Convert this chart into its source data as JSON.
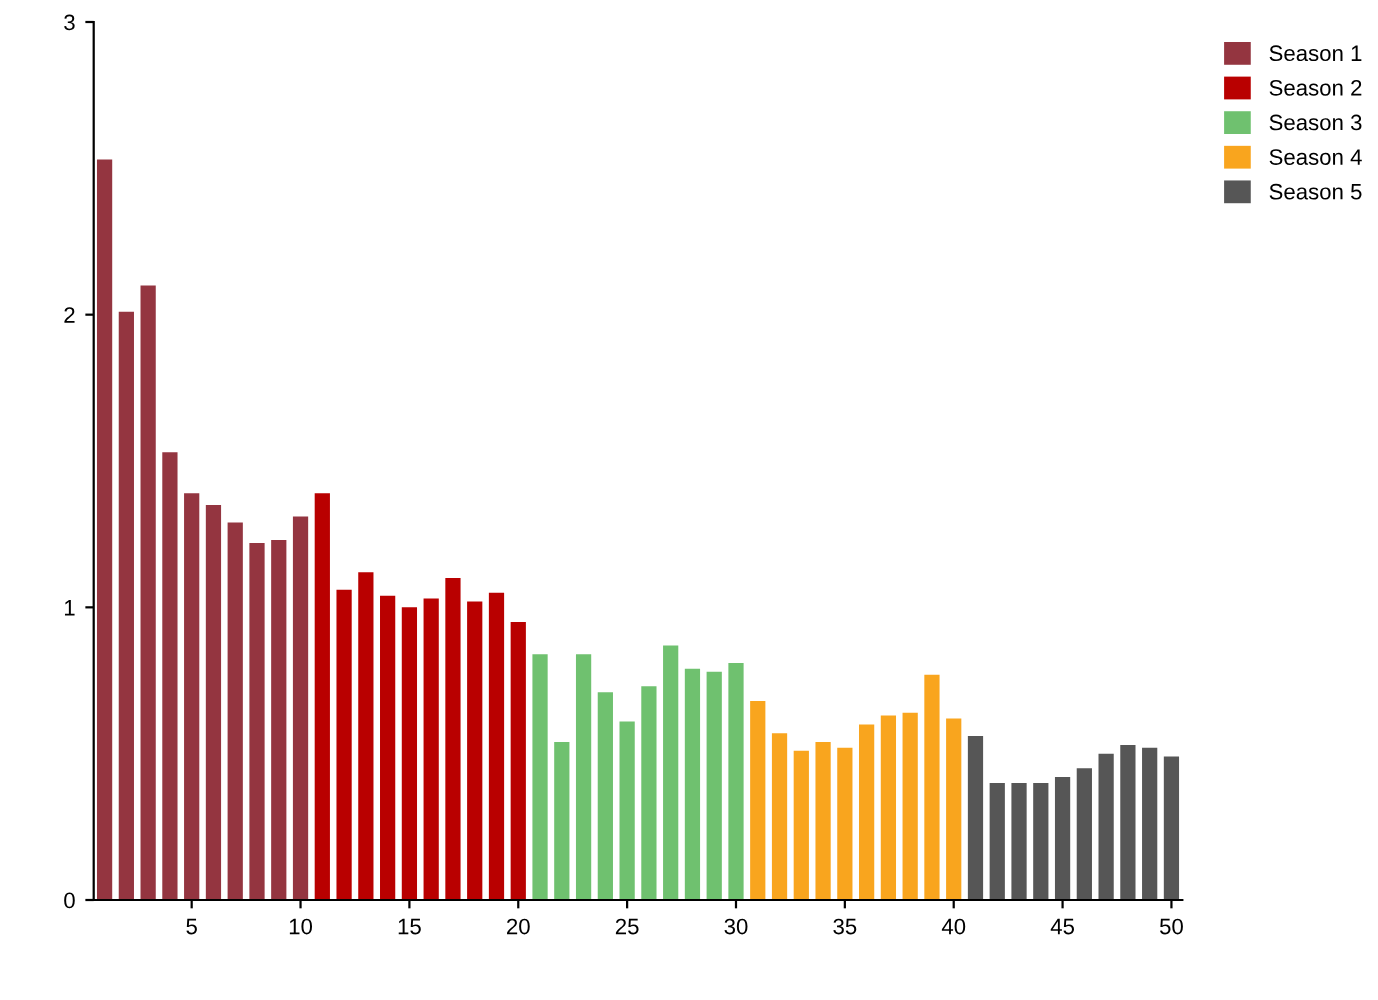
{
  "chart_data": {
    "type": "bar",
    "xlim": [
      0.5,
      50.5
    ],
    "xticks": [
      5,
      10,
      15,
      20,
      25,
      30,
      35,
      40,
      45,
      50
    ],
    "ylim": [
      0,
      3
    ],
    "yticks": [
      0,
      1,
      2,
      3
    ],
    "grid": false,
    "legend": "top right",
    "series": [
      {
        "name": "Season 1",
        "color": "#943540",
        "x": [
          1,
          2,
          3,
          4,
          5,
          6,
          7,
          8,
          9,
          10
        ],
        "values": [
          2.53,
          2.01,
          2.1,
          1.53,
          1.39,
          1.35,
          1.29,
          1.22,
          1.23,
          1.31
        ]
      },
      {
        "name": "Season 2",
        "color": "#b90000",
        "x": [
          11,
          12,
          13,
          14,
          15,
          16,
          17,
          18,
          19,
          20
        ],
        "values": [
          1.39,
          1.06,
          1.12,
          1.04,
          1.0,
          1.03,
          1.1,
          1.02,
          1.05,
          0.95
        ]
      },
      {
        "name": "Season 3",
        "color": "#6fc16f",
        "x": [
          21,
          22,
          23,
          24,
          25,
          26,
          27,
          28,
          29,
          30
        ],
        "values": [
          0.84,
          0.54,
          0.84,
          0.71,
          0.61,
          0.73,
          0.87,
          0.79,
          0.78,
          0.81
        ]
      },
      {
        "name": "Season 4",
        "color": "#f9a51e",
        "x": [
          31,
          32,
          33,
          34,
          35,
          36,
          37,
          38,
          39,
          40
        ],
        "values": [
          0.68,
          0.57,
          0.51,
          0.54,
          0.52,
          0.6,
          0.63,
          0.64,
          0.77,
          0.62
        ]
      },
      {
        "name": "Season 5",
        "color": "#565656",
        "x": [
          41,
          42,
          43,
          44,
          45,
          46,
          47,
          48,
          49,
          50
        ],
        "values": [
          0.56,
          0.4,
          0.4,
          0.4,
          0.42,
          0.45,
          0.5,
          0.53,
          0.52,
          0.49
        ]
      }
    ]
  }
}
